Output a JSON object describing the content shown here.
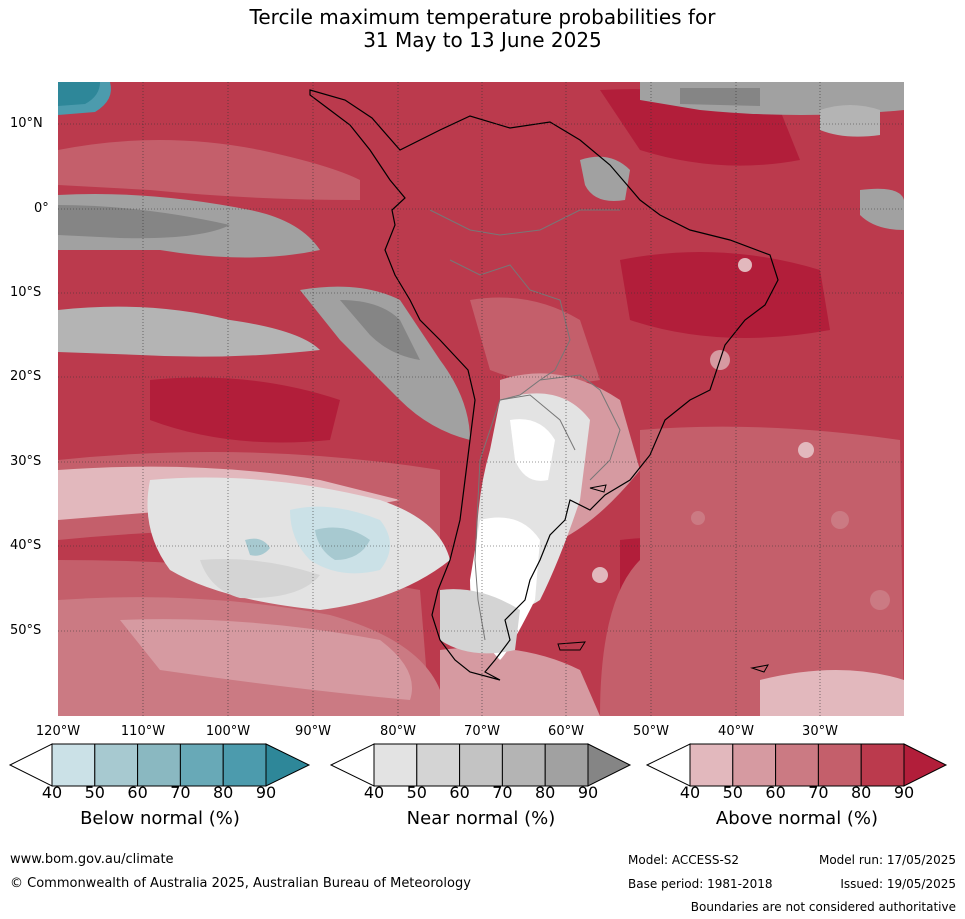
{
  "title": {
    "line1": "Tercile maximum temperature probabilities for",
    "line2": "31 May to 13 June 2025"
  },
  "axes": {
    "lat_labels": [
      "10°N",
      "0°",
      "10°S",
      "20°S",
      "30°S",
      "40°S",
      "50°S"
    ],
    "lon_labels": [
      "120°W",
      "110°W",
      "100°W",
      "90°W",
      "80°W",
      "70°W",
      "60°W",
      "50°W",
      "40°W",
      "30°W"
    ]
  },
  "colorbars": {
    "ticks": [
      "40",
      "50",
      "60",
      "70",
      "80",
      "90"
    ],
    "below": {
      "label": "Below normal (%)",
      "colors": [
        "#cbe1e7",
        "#a7c9d0",
        "#8ab8c1",
        "#68a9b7",
        "#4c9bad",
        "#2e8799"
      ]
    },
    "near": {
      "label": "Near normal (%)",
      "colors": [
        "#e3e3e3",
        "#d4d4d4",
        "#c3c3c3",
        "#b4b4b4",
        "#a1a1a1",
        "#858585"
      ]
    },
    "above": {
      "label": "Above normal (%)",
      "colors": [
        "#e2b8bd",
        "#d69aa1",
        "#cb7a83",
        "#c45f6b",
        "#bb3a4d",
        "#b21e3a"
      ]
    }
  },
  "footer": {
    "website": "www.bom.gov.au/climate",
    "copyright": "© Commonwealth of Australia 2025, Australian Bureau of Meteorology",
    "model": "Model: ACCESS-S2",
    "base_period": "Base period: 1981-2018",
    "model_run": "Model run: 17/05/2025",
    "issued": "Issued: 19/05/2025",
    "disclaimer": "Boundaries are not considered authoritative"
  }
}
